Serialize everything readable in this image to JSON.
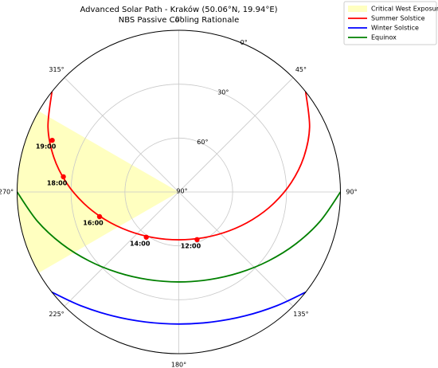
{
  "chart_data": {
    "type": "polar",
    "title": "Advanced Solar Path - Kraków (50.06°N, 19.94°E)",
    "subtitle": "NBS Passive Cooling Rationale",
    "xlim": [
      0,
      360
    ],
    "xticks": [
      {
        "value": 0,
        "label": "0°"
      },
      {
        "value": 45,
        "label": "45°"
      },
      {
        "value": 90,
        "label": "90°"
      },
      {
        "value": 135,
        "label": "135°"
      },
      {
        "value": 180,
        "label": "180°"
      },
      {
        "value": 225,
        "label": "225°"
      },
      {
        "value": 270,
        "label": "270°"
      },
      {
        "value": 315,
        "label": "315°"
      }
    ],
    "ylim": [
      90,
      0
    ],
    "yticks": [
      {
        "value": 0,
        "label": "0°"
      },
      {
        "value": 30,
        "label": "30°"
      },
      {
        "value": 60,
        "label": "60°"
      },
      {
        "value": 90,
        "label": "90°"
      }
    ],
    "grid": true,
    "legend": "upper right",
    "sector": {
      "name": "Critical West Exposure",
      "color": "#ffffc0",
      "x": [
        240,
        300
      ]
    },
    "series": [
      {
        "name": "Summer Solstice",
        "color": "#ff0000",
        "x": [
          51.7,
          63.7,
          74.45,
          85.3,
          97.0,
          110.5,
          127.7,
          150.7,
          180,
          209.3,
          232.3,
          249.5,
          263.0,
          274.7,
          285.55,
          296.3,
          308.3
        ],
        "values": [
          0,
          8.78,
          17.76,
          27.22,
          36.87,
          46.17,
          54.6,
          60.9,
          63.38,
          60.9,
          54.6,
          46.17,
          36.87,
          27.22,
          17.76,
          8.78,
          0
        ]
      },
      {
        "name": "Winter Solstice",
        "color": "#0000ff",
        "x": [
          128.3,
          139.2,
          152.0,
          165.7,
          180,
          194.3,
          208.0,
          220.8,
          231.7
        ],
        "values": [
          0,
          6.4,
          11.83,
          15.3,
          16.49,
          15.3,
          11.83,
          6.4,
          0
        ]
      },
      {
        "name": "Equinox",
        "color": "#008000",
        "x": [
          90,
          101.6,
          113.9,
          127.5,
          143.0,
          160.7,
          180,
          199.3,
          217.0,
          232.5,
          246.1,
          258.4,
          270
        ],
        "values": [
          0,
          9.56,
          18.72,
          27.0,
          33.77,
          38.32,
          39.94,
          38.32,
          33.77,
          27.0,
          18.72,
          9.56,
          0
        ]
      }
    ],
    "hour_markers": {
      "color": "#ff0000",
      "x": [
        159,
        215.7,
        252.7,
        277.5,
        292.2
      ],
      "values": [
        61.6,
        59,
        43.8,
        25.2,
        13.9
      ],
      "labels": [
        "12:00",
        "14:00",
        "16:00",
        "18:00",
        "19:00"
      ]
    }
  }
}
